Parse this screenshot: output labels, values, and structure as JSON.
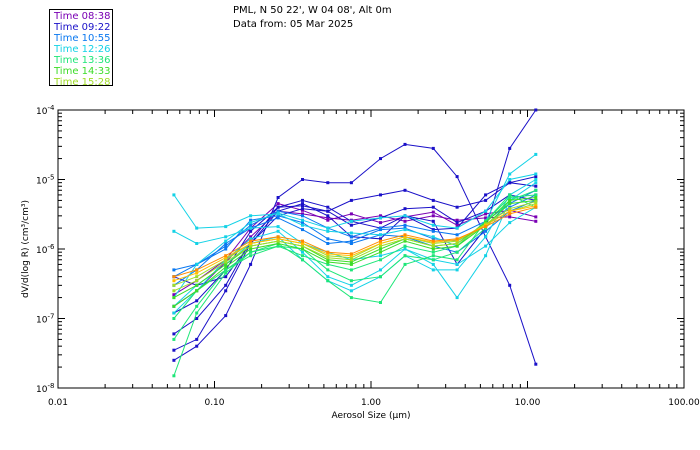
{
  "header": {
    "location": "PML, N 50 22', W 04 08', Alt 0m",
    "date": "Data from: 05 Mar 2025"
  },
  "legend": [
    {
      "label": "Time 08:38",
      "color": "#7a00b4"
    },
    {
      "label": "Time 09:22",
      "color": "#1a10c8"
    },
    {
      "label": "Time 10:55",
      "color": "#0a78f0"
    },
    {
      "label": "Time 12:26",
      "color": "#14d2e6"
    },
    {
      "label": "Time 13:36",
      "color": "#1ee678"
    },
    {
      "label": "Time 14:33",
      "color": "#3cdc28"
    },
    {
      "label": "Time 15:28",
      "color": "#a0dc28"
    }
  ],
  "chart_data": {
    "type": "line",
    "xscale": "log",
    "yscale": "log",
    "xlim": [
      0.01,
      100
    ],
    "ylim": [
      1e-08,
      0.0001
    ],
    "xlabel": "Aerosol Size (μm)",
    "ylabel": "dV/d(log R) (cm³/cm³)",
    "x_tick_labels": [
      "0.01",
      "0.10",
      "1.00",
      "10.00",
      "100.00"
    ],
    "y_tick_labels": [
      {
        "base": "10",
        "exp": "-8"
      },
      {
        "base": "10",
        "exp": "-7"
      },
      {
        "base": "10",
        "exp": "-6"
      },
      {
        "base": "10",
        "exp": "-5"
      },
      {
        "base": "10",
        "exp": "-4"
      }
    ],
    "x": [
      0.055,
      0.077,
      0.118,
      0.17,
      0.255,
      0.365,
      0.53,
      0.75,
      1.15,
      1.65,
      2.5,
      3.55,
      5.4,
      7.7,
      11.3
    ],
    "series": [
      {
        "name": "Time 08:38",
        "color": "#7a00b4",
        "values": [
          1.5e-07,
          2.5e-07,
          6.5e-07,
          1.5e-06,
          3.5e-06,
          3.2e-06,
          2.8e-06,
          2.6e-06,
          3e-06,
          2.5e-06,
          3e-06,
          2.6e-06,
          2.8e-06,
          2.9e-06,
          2.5e-06
        ]
      },
      {
        "name": "Time 08:38",
        "color": "#7a00b4",
        "values": [
          2.2e-07,
          3.5e-07,
          7e-07,
          2e-06,
          4.5e-06,
          3.6e-06,
          2.6e-06,
          3.2e-06,
          2.4e-06,
          2.9e-06,
          3.4e-06,
          2.2e-06,
          3.2e-06,
          3.6e-06,
          2.9e-06
        ]
      },
      {
        "name": "Time 09:22",
        "color": "#1a10c8",
        "values": [
          2.5e-08,
          4e-08,
          1.1e-07,
          6e-07,
          5.5e-06,
          1e-05,
          9e-06,
          9e-06,
          2e-05,
          3.2e-05,
          2.8e-05,
          1.1e-05,
          1.5e-06,
          3e-07,
          2.2e-08
        ]
      },
      {
        "name": "Time 09:22",
        "color": "#1a10c8",
        "values": [
          3.5e-08,
          5e-08,
          2.5e-07,
          1.2e-06,
          3.5e-06,
          4.5e-06,
          3e-06,
          1.5e-06,
          1.4e-06,
          3e-06,
          2.5e-06,
          6e-07,
          2e-06,
          2.8e-05,
          0.0001
        ]
      },
      {
        "name": "Time 09:22",
        "color": "#1a10c8",
        "values": [
          4e-07,
          3e-07,
          4e-07,
          1.2e-06,
          3e-06,
          3.8e-06,
          3.5e-06,
          5e-06,
          6e-06,
          7e-06,
          5e-06,
          4e-06,
          5e-06,
          9e-06,
          1.1e-05
        ]
      },
      {
        "name": "Time 09:22",
        "color": "#1a10c8",
        "values": [
          1.2e-07,
          1.8e-07,
          5e-07,
          1.8e-06,
          4e-06,
          5e-06,
          4e-06,
          2.5e-06,
          2e-06,
          3e-06,
          1.9e-06,
          2e-06,
          6e-06,
          9e-06,
          8e-06
        ]
      },
      {
        "name": "Time 09:22",
        "color": "#1a10c8",
        "values": [
          6e-08,
          1e-07,
          3e-07,
          1.3e-06,
          4e-06,
          4.2e-06,
          3.5e-06,
          2.2e-06,
          2.8e-06,
          3.8e-06,
          4e-06,
          2.4e-06,
          3.5e-06,
          6e-06,
          5e-06
        ]
      },
      {
        "name": "Time 10:55",
        "color": "#0a78f0",
        "values": [
          4e-07,
          6e-07,
          1.1e-06,
          2.2e-06,
          3.5e-06,
          3e-06,
          2e-06,
          1.5e-06,
          2e-06,
          2.2e-06,
          1.8e-06,
          1.6e-06,
          2.5e-06,
          4.5e-06,
          7e-06
        ]
      },
      {
        "name": "Time 10:55",
        "color": "#0a78f0",
        "values": [
          5e-07,
          6e-07,
          1e-06,
          2.6e-06,
          3e-06,
          2.4e-06,
          1.4e-06,
          1.2e-06,
          1.6e-06,
          1.5e-06,
          1.1e-06,
          9e-07,
          1.8e-06,
          3.5e-06,
          5e-06
        ]
      },
      {
        "name": "Time 10:55",
        "color": "#0a78f0",
        "values": [
          3e-07,
          5e-07,
          1.2e-06,
          2e-06,
          2.8e-06,
          1.9e-06,
          1.2e-06,
          1.3e-06,
          1.9e-06,
          2e-06,
          1.4e-06,
          1.3e-06,
          2.2e-06,
          4e-06,
          6e-06
        ]
      },
      {
        "name": "Time 12:26",
        "color": "#14d2e6",
        "values": [
          6e-06,
          2e-06,
          2.1e-06,
          3e-06,
          3.2e-06,
          2.2e-06,
          1.8e-06,
          1.7e-06,
          1.6e-06,
          1.9e-06,
          1.5e-06,
          1.1e-06,
          2.5e-06,
          1.2e-05,
          2.3e-05
        ]
      },
      {
        "name": "Time 12:26",
        "color": "#14d2e6",
        "values": [
          1.8e-06,
          1.2e-06,
          1.5e-06,
          2e-06,
          2.1e-06,
          1.2e-06,
          9e-07,
          7e-07,
          8e-07,
          1e-06,
          7e-07,
          6e-07,
          1.1e-06,
          2.4e-06,
          4e-06
        ]
      },
      {
        "name": "Time 12:26",
        "color": "#14d2e6",
        "values": [
          2e-07,
          6e-07,
          1.3e-06,
          2.4e-06,
          3.3e-06,
          2.6e-06,
          2e-06,
          2.5e-06,
          2.8e-06,
          3e-06,
          2.2e-06,
          2e-06,
          3.5e-06,
          1e-05,
          1.2e-05
        ]
      },
      {
        "name": "Time 12:26",
        "color": "#14d2e6",
        "values": [
          1.2e-07,
          2.5e-07,
          7e-07,
          1.4e-06,
          1.8e-06,
          9e-07,
          4e-07,
          3e-07,
          5e-07,
          1e-06,
          6e-07,
          2e-07,
          8e-07,
          5e-06,
          9e-06
        ]
      },
      {
        "name": "Time 12:26",
        "color": "#14d2e6",
        "values": [
          1.5e-07,
          3e-07,
          6e-07,
          1.2e-06,
          1.5e-06,
          7e-07,
          3.5e-07,
          2.5e-07,
          4e-07,
          8e-07,
          5e-07,
          5e-07,
          1.5e-06,
          6e-06,
          1e-05
        ]
      },
      {
        "name": "Time 13:36",
        "color": "#1ee678",
        "values": [
          1e-07,
          2.5e-07,
          5e-07,
          9e-07,
          1.2e-06,
          7e-07,
          3.5e-07,
          2e-07,
          1.7e-07,
          6e-07,
          8e-07,
          7e-07,
          2.5e-06,
          6e-06,
          4e-06
        ]
      },
      {
        "name": "Time 13:36",
        "color": "#1ee678",
        "values": [
          5e-08,
          1.5e-07,
          5e-07,
          8e-07,
          1.1e-06,
          1e-06,
          5e-07,
          3.5e-07,
          4e-07,
          8e-07,
          7e-07,
          9e-07,
          2e-06,
          5e-06,
          7e-06
        ]
      },
      {
        "name": "Time 13:36",
        "color": "#1ee678",
        "values": [
          1.5e-08,
          1.2e-07,
          4.5e-07,
          9e-07,
          1.1e-06,
          8e-07,
          6e-07,
          5e-07,
          7e-07,
          1.1e-06,
          9e-07,
          1.1e-06,
          2.5e-06,
          5.5e-06,
          6e-06
        ]
      },
      {
        "name": "Time 14:33",
        "color": "#3cdc28",
        "values": [
          1.5e-07,
          2.5e-07,
          5.5e-07,
          1e-06,
          1.2e-06,
          1e-06,
          6.5e-07,
          6e-07,
          9e-07,
          1.3e-06,
          1e-06,
          1.1e-06,
          2.2e-06,
          4.5e-06,
          5e-06
        ]
      },
      {
        "name": "Time 14:33",
        "color": "#3cdc28",
        "values": [
          2e-07,
          3e-07,
          6e-07,
          1.1e-06,
          1.3e-06,
          1.1e-06,
          7e-07,
          6.5e-07,
          1e-06,
          1.4e-06,
          1.1e-06,
          1.2e-06,
          2.4e-06,
          5e-06,
          5.5e-06
        ]
      },
      {
        "name": "Time 15:28",
        "color": "#a0dc28",
        "values": [
          2.5e-07,
          3.5e-07,
          6.5e-07,
          1.1e-06,
          1.3e-06,
          1.1e-06,
          7.5e-07,
          7e-07,
          1.1e-06,
          1.4e-06,
          1.1e-06,
          1.2e-06,
          2.2e-06,
          3.5e-06,
          4.5e-06
        ]
      },
      {
        "name": "Time 15:28",
        "color": "#a0dc28",
        "values": [
          3e-07,
          4e-07,
          7e-07,
          1.2e-06,
          1.4e-06,
          1.2e-06,
          8e-07,
          7.5e-07,
          1.2e-06,
          1.5e-06,
          1.2e-06,
          1.3e-06,
          2.3e-06,
          3.8e-06,
          4.8e-06
        ]
      },
      {
        "name": "Time 15:28",
        "color": "#ffc000",
        "values": [
          3.5e-07,
          4.5e-07,
          7.5e-07,
          1.2e-06,
          1.4e-06,
          1.2e-06,
          8.5e-07,
          8e-07,
          1.2e-06,
          1.5e-06,
          1.25e-06,
          1.35e-06,
          2.2e-06,
          3.5e-06,
          4.2e-06
        ]
      },
      {
        "name": "Time 15:28",
        "color": "#ff8c00",
        "values": [
          4e-07,
          5e-07,
          8e-07,
          1.3e-06,
          1.5e-06,
          1.3e-06,
          9e-07,
          8.5e-07,
          1.3e-06,
          1.6e-06,
          1.3e-06,
          1.4e-06,
          2.1e-06,
          3.2e-06,
          4e-06
        ]
      }
    ]
  }
}
